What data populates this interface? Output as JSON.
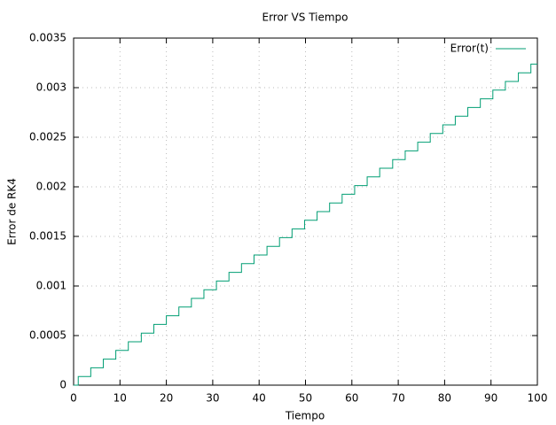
{
  "chart_data": {
    "type": "line",
    "title": "Error VS Tiempo",
    "x_label": "Tiempo",
    "y_label": "Error de RK4",
    "x": [
      0,
      1,
      1,
      3.7,
      3.7,
      6.4,
      6.4,
      9.1,
      9.1,
      11.8,
      11.8,
      14.6,
      14.6,
      17.3,
      17.3,
      20,
      20,
      22.7,
      22.7,
      25.4,
      25.4,
      28.1,
      28.1,
      30.8,
      30.8,
      33.5,
      33.5,
      36.2,
      36.2,
      38.9,
      38.9,
      41.7,
      41.7,
      44.4,
      44.4,
      47.1,
      47.1,
      49.8,
      49.8,
      52.5,
      52.5,
      55.2,
      55.2,
      57.9,
      57.9,
      60.6,
      60.6,
      63.3,
      63.3,
      66,
      66,
      68.8,
      68.8,
      71.5,
      71.5,
      74.2,
      74.2,
      76.9,
      76.9,
      79.6,
      79.6,
      82.3,
      82.3,
      85,
      85,
      87.7,
      87.7,
      90.4,
      90.4,
      93.1,
      93.1,
      95.9,
      95.9,
      98.6,
      98.6,
      100
    ],
    "series": [
      {
        "name": "Error(t)",
        "color": "#009e73",
        "values": [
          0,
          0,
          8.75e-05,
          8.75e-05,
          0.000175,
          0.000175,
          0.0002625,
          0.0002625,
          0.00035,
          0.00035,
          0.0004375,
          0.0004375,
          0.000525,
          0.000525,
          0.0006125,
          0.0006125,
          0.0007,
          0.0007,
          0.0007875,
          0.0007875,
          0.000875,
          0.000875,
          0.0009625,
          0.0009625,
          0.00105,
          0.00105,
          0.0011375,
          0.0011375,
          0.001225,
          0.001225,
          0.0013125,
          0.0013125,
          0.0014,
          0.0014,
          0.0014875,
          0.0014875,
          0.001575,
          0.001575,
          0.0016625,
          0.0016625,
          0.00175,
          0.00175,
          0.0018375,
          0.0018375,
          0.001925,
          0.001925,
          0.0020125,
          0.0020125,
          0.0021,
          0.0021,
          0.0021875,
          0.0021875,
          0.002275,
          0.002275,
          0.0023625,
          0.0023625,
          0.00245,
          0.00245,
          0.0025375,
          0.0025375,
          0.002625,
          0.002625,
          0.0027125,
          0.0027125,
          0.0028,
          0.0028,
          0.0028875,
          0.0028875,
          0.002975,
          0.002975,
          0.0030625,
          0.0030625,
          0.00315,
          0.00315,
          0.0032375,
          0.0032375
        ]
      }
    ],
    "xlim": [
      0,
      100
    ],
    "xticks": [
      0,
      10,
      20,
      30,
      40,
      50,
      60,
      70,
      80,
      90,
      100
    ],
    "ylim": [
      0,
      0.0035
    ],
    "yticks": [
      0,
      0.0005,
      0.001,
      0.0015,
      0.002,
      0.0025,
      0.003,
      0.0035
    ],
    "grid": true,
    "legend": "top-right"
  }
}
